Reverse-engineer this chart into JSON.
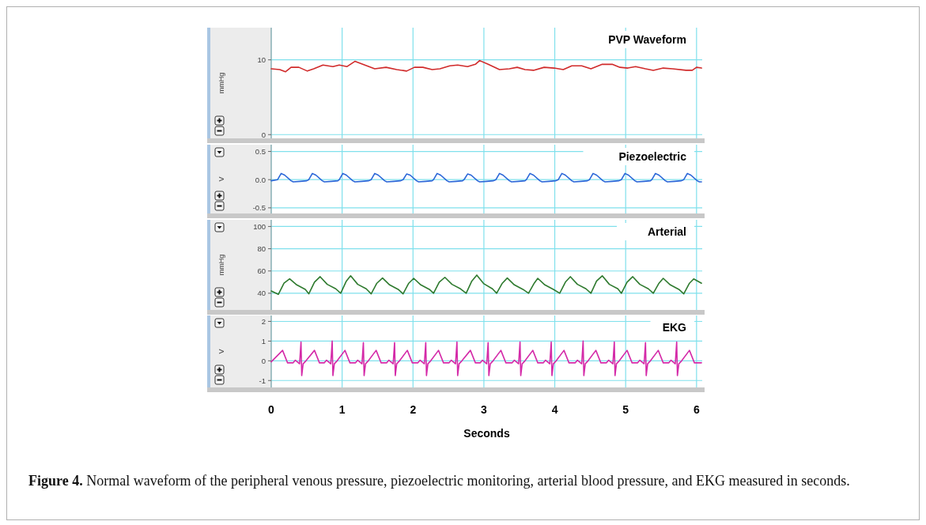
{
  "chart_data": [
    {
      "type": "line",
      "title": "PVP Waveform",
      "ylabel": "mmHg",
      "xlim": [
        0,
        6.08
      ],
      "xticks": [
        0,
        1,
        2,
        3,
        4,
        5,
        6
      ],
      "ylim": [
        -0.5,
        14.3
      ],
      "yticks": [
        0,
        10
      ],
      "grid": true,
      "tick_labels": "y",
      "series": [
        {
          "color": "#d02a2a",
          "x": [
            0,
            0.12,
            0.2,
            0.28,
            0.39,
            0.51,
            0.6,
            0.73,
            0.87,
            0.96,
            1.07,
            1.18,
            1.32,
            1.46,
            1.62,
            1.77,
            1.91,
            2.02,
            2.14,
            2.27,
            2.38,
            2.52,
            2.63,
            2.77,
            2.88,
            2.94,
            3.06,
            3.22,
            3.36,
            3.47,
            3.58,
            3.7,
            3.85,
            3.99,
            4.12,
            4.24,
            4.38,
            4.51,
            4.67,
            4.81,
            4.92,
            5.03,
            5.14,
            5.28,
            5.39,
            5.53,
            5.66,
            5.85,
            5.94,
            6.0,
            6.07
          ],
          "values": [
            8.8,
            8.7,
            8.4,
            9.0,
            9.0,
            8.5,
            8.8,
            9.3,
            9.1,
            9.3,
            9.1,
            9.8,
            9.3,
            8.8,
            9.0,
            8.7,
            8.5,
            9.0,
            9.0,
            8.7,
            8.8,
            9.2,
            9.3,
            9.1,
            9.4,
            9.9,
            9.4,
            8.7,
            8.8,
            9.0,
            8.7,
            8.6,
            9.0,
            8.9,
            8.7,
            9.2,
            9.2,
            8.8,
            9.4,
            9.4,
            9.0,
            8.9,
            9.1,
            8.8,
            8.6,
            8.9,
            8.8,
            8.6,
            8.6,
            9.0,
            8.9
          ]
        }
      ]
    },
    {
      "type": "line",
      "title": "Piezoelectric",
      "ylabel": "V",
      "xlim": [
        0,
        6.08
      ],
      "xticks": [
        0,
        1,
        2,
        3,
        4,
        5,
        6
      ],
      "ylim": [
        -0.6,
        0.62
      ],
      "yticks": [
        {
          "value": -0.5,
          "label": "-0.5"
        },
        {
          "value": 0,
          "label": "0.0"
        },
        {
          "value": 0.5,
          "label": "0.5"
        }
      ],
      "grid": true,
      "tick_labels": "y",
      "series": [
        {
          "color": "#2a66d8",
          "x": [
            0,
            0.09,
            0.14,
            0.19,
            0.28,
            0.31,
            0.41,
            0.5,
            0.53,
            0.58,
            0.63,
            0.72,
            0.75,
            0.85,
            0.94,
            0.96,
            1.01,
            1.06,
            1.15,
            1.18,
            1.28,
            1.37,
            1.41,
            1.46,
            1.51,
            1.6,
            1.63,
            1.73,
            1.82,
            1.86,
            1.91,
            1.96,
            2.05,
            2.08,
            2.18,
            2.27,
            2.29,
            2.34,
            2.39,
            2.48,
            2.51,
            2.61,
            2.7,
            2.72,
            2.77,
            2.82,
            2.91,
            2.94,
            3.04,
            3.13,
            3.17,
            3.22,
            3.27,
            3.36,
            3.39,
            3.49,
            3.58,
            3.6,
            3.65,
            3.7,
            3.79,
            3.82,
            3.92,
            4.01,
            4.05,
            4.1,
            4.15,
            4.24,
            4.27,
            4.37,
            4.46,
            4.49,
            4.54,
            4.59,
            4.68,
            4.71,
            4.81,
            4.9,
            4.94,
            4.99,
            5.04,
            5.13,
            5.16,
            5.26,
            5.35,
            5.37,
            5.42,
            5.47,
            5.56,
            5.59,
            5.69,
            5.78,
            5.82,
            5.87,
            5.92,
            6.01,
            6.04,
            6.07
          ],
          "values": [
            -0.02,
            0.0,
            0.11,
            0.08,
            -0.02,
            -0.04,
            -0.03,
            -0.02,
            0.0,
            0.11,
            0.08,
            -0.02,
            -0.04,
            -0.03,
            -0.02,
            0.0,
            0.11,
            0.08,
            -0.02,
            -0.04,
            -0.03,
            -0.02,
            0.0,
            0.11,
            0.08,
            -0.02,
            -0.04,
            -0.03,
            -0.02,
            0.0,
            0.1,
            0.08,
            -0.02,
            -0.04,
            -0.03,
            -0.02,
            0.0,
            0.11,
            0.08,
            -0.02,
            -0.04,
            -0.03,
            -0.02,
            0.0,
            0.1,
            0.08,
            -0.02,
            -0.04,
            -0.03,
            -0.02,
            0.0,
            0.11,
            0.08,
            -0.02,
            -0.04,
            -0.03,
            -0.02,
            0.0,
            0.11,
            0.08,
            -0.02,
            -0.04,
            -0.03,
            -0.02,
            0.0,
            0.11,
            0.08,
            -0.02,
            -0.04,
            -0.03,
            -0.02,
            0.0,
            0.11,
            0.08,
            -0.02,
            -0.04,
            -0.03,
            -0.02,
            0.0,
            0.11,
            0.08,
            -0.02,
            -0.04,
            -0.03,
            -0.02,
            0.0,
            0.11,
            0.08,
            -0.02,
            -0.04,
            -0.03,
            -0.02,
            0.0,
            0.11,
            0.08,
            -0.02,
            -0.04,
            -0.04
          ]
        }
      ]
    },
    {
      "type": "line",
      "title": "Arterial",
      "ylabel": "mmHg",
      "xlim": [
        0,
        6.08
      ],
      "xticks": [
        0,
        1,
        2,
        3,
        4,
        5,
        6
      ],
      "ylim": [
        25,
        106
      ],
      "yticks": [
        40,
        60,
        80,
        100
      ],
      "grid": true,
      "tick_labels": "y",
      "series": [
        {
          "color": "#2e7a2e",
          "x": [
            0,
            0.1,
            0.18,
            0.26,
            0.36,
            0.48,
            0.53,
            0.61,
            0.69,
            0.79,
            0.91,
            0.98,
            1.06,
            1.12,
            1.22,
            1.34,
            1.41,
            1.49,
            1.57,
            1.67,
            1.79,
            1.86,
            1.94,
            2.01,
            2.11,
            2.23,
            2.29,
            2.37,
            2.45,
            2.55,
            2.67,
            2.75,
            2.83,
            2.9,
            3.0,
            3.12,
            3.18,
            3.26,
            3.33,
            3.43,
            3.55,
            3.63,
            3.71,
            3.76,
            3.86,
            3.98,
            4.07,
            4.15,
            4.22,
            4.32,
            4.44,
            4.51,
            4.59,
            4.67,
            4.77,
            4.89,
            4.94,
            5.02,
            5.1,
            5.2,
            5.32,
            5.39,
            5.47,
            5.53,
            5.63,
            5.75,
            5.82,
            5.9,
            5.96,
            6.07
          ],
          "values": [
            42,
            39,
            49,
            52.9,
            47.5,
            43.5,
            39.5,
            50,
            54.9,
            48,
            44,
            40,
            51,
            55.7,
            48,
            44,
            39.5,
            49,
            53.7,
            47.5,
            43.5,
            39.5,
            49,
            53.4,
            47.5,
            43.5,
            40,
            50,
            54.3,
            48,
            44,
            40,
            51,
            56.3,
            48.5,
            44,
            40,
            49,
            53.7,
            47.5,
            43.5,
            40,
            49,
            53.4,
            47.5,
            43.5,
            40,
            50,
            54.9,
            48,
            44,
            40,
            51,
            55.7,
            48,
            44,
            40,
            50,
            54.9,
            48,
            44,
            40,
            49,
            53.4,
            47.5,
            43.5,
            39.5,
            49,
            52.9,
            49
          ]
        }
      ]
    },
    {
      "type": "line",
      "title": "EKG",
      "ylabel": "V",
      "xlabel": "Seconds",
      "xlim": [
        0,
        6.08
      ],
      "xticks": [
        0,
        1,
        2,
        3,
        4,
        5,
        6
      ],
      "ylim": [
        -1.35,
        2.3
      ],
      "yticks": [
        -1,
        0,
        1,
        2
      ],
      "grid": true,
      "annotations": [
        "Figure 4.",
        "Normal waveform of the peripheral venous pressure, piezoelectric monitoring, arterial blood pressure, and EKG measured in seconds."
      ],
      "series": [
        {
          "color": "#d42aa8",
          "x": [
            0,
            0.16,
            0.23,
            0.31,
            0.34,
            0.4,
            0.42,
            0.43,
            0.45,
            0.49,
            0.61,
            0.68,
            0.75,
            0.78,
            0.84,
            0.86,
            0.87,
            0.89,
            0.93,
            1.04,
            1.11,
            1.19,
            1.22,
            1.28,
            1.3,
            1.31,
            1.33,
            1.37,
            1.48,
            1.55,
            1.63,
            1.66,
            1.72,
            1.74,
            1.75,
            1.77,
            1.81,
            1.92,
            1.99,
            2.07,
            2.1,
            2.16,
            2.18,
            2.19,
            2.21,
            2.25,
            2.36,
            2.43,
            2.51,
            2.54,
            2.6,
            2.62,
            2.63,
            2.65,
            2.69,
            2.81,
            2.88,
            2.95,
            2.98,
            3.04,
            3.06,
            3.07,
            3.09,
            3.13,
            3.24,
            3.31,
            3.4,
            3.43,
            3.49,
            3.51,
            3.52,
            3.54,
            3.58,
            3.69,
            3.76,
            3.84,
            3.87,
            3.93,
            3.95,
            3.96,
            3.98,
            4.02,
            4.13,
            4.2,
            4.29,
            4.32,
            4.38,
            4.4,
            4.41,
            4.43,
            4.47,
            4.58,
            4.65,
            4.73,
            4.76,
            4.82,
            4.84,
            4.85,
            4.87,
            4.91,
            5.02,
            5.09,
            5.17,
            5.2,
            5.26,
            5.28,
            5.29,
            5.31,
            5.35,
            5.46,
            5.53,
            5.61,
            5.64,
            5.7,
            5.72,
            5.73,
            5.75,
            5.79,
            5.9,
            5.97,
            6.07
          ],
          "values": [
            -0.05,
            0.53,
            -0.1,
            -0.1,
            0.03,
            -0.15,
            0.95,
            -0.75,
            -0.15,
            0.0,
            0.53,
            -0.1,
            -0.1,
            0.03,
            -0.15,
            1.0,
            -0.75,
            -0.15,
            0.0,
            0.53,
            -0.1,
            -0.1,
            0.03,
            -0.15,
            0.92,
            -0.75,
            -0.15,
            0.0,
            0.53,
            -0.1,
            -0.1,
            0.03,
            -0.15,
            0.92,
            -0.75,
            -0.15,
            0.0,
            0.53,
            -0.1,
            -0.1,
            0.03,
            -0.15,
            0.92,
            -0.75,
            -0.15,
            0.0,
            0.53,
            -0.1,
            -0.1,
            0.03,
            -0.15,
            0.95,
            -0.75,
            -0.15,
            0.0,
            0.53,
            -0.1,
            -0.1,
            0.03,
            -0.15,
            0.92,
            -0.75,
            -0.15,
            0.0,
            0.53,
            -0.1,
            -0.1,
            0.03,
            -0.15,
            0.95,
            -0.75,
            -0.15,
            0.0,
            0.53,
            -0.1,
            -0.1,
            0.03,
            -0.15,
            0.95,
            -0.75,
            -0.15,
            0.0,
            0.53,
            -0.1,
            -0.1,
            0.03,
            -0.15,
            1.0,
            -0.75,
            -0.15,
            0.0,
            0.53,
            -0.1,
            -0.1,
            0.03,
            -0.15,
            0.95,
            -0.75,
            -0.15,
            0.0,
            0.53,
            -0.1,
            -0.1,
            0.03,
            -0.15,
            0.92,
            -0.75,
            -0.15,
            0.0,
            0.53,
            -0.1,
            -0.1,
            0.03,
            -0.15,
            0.95,
            -0.75,
            -0.15,
            0.0,
            0.53,
            -0.1,
            -0.1
          ]
        }
      ]
    }
  ]
}
